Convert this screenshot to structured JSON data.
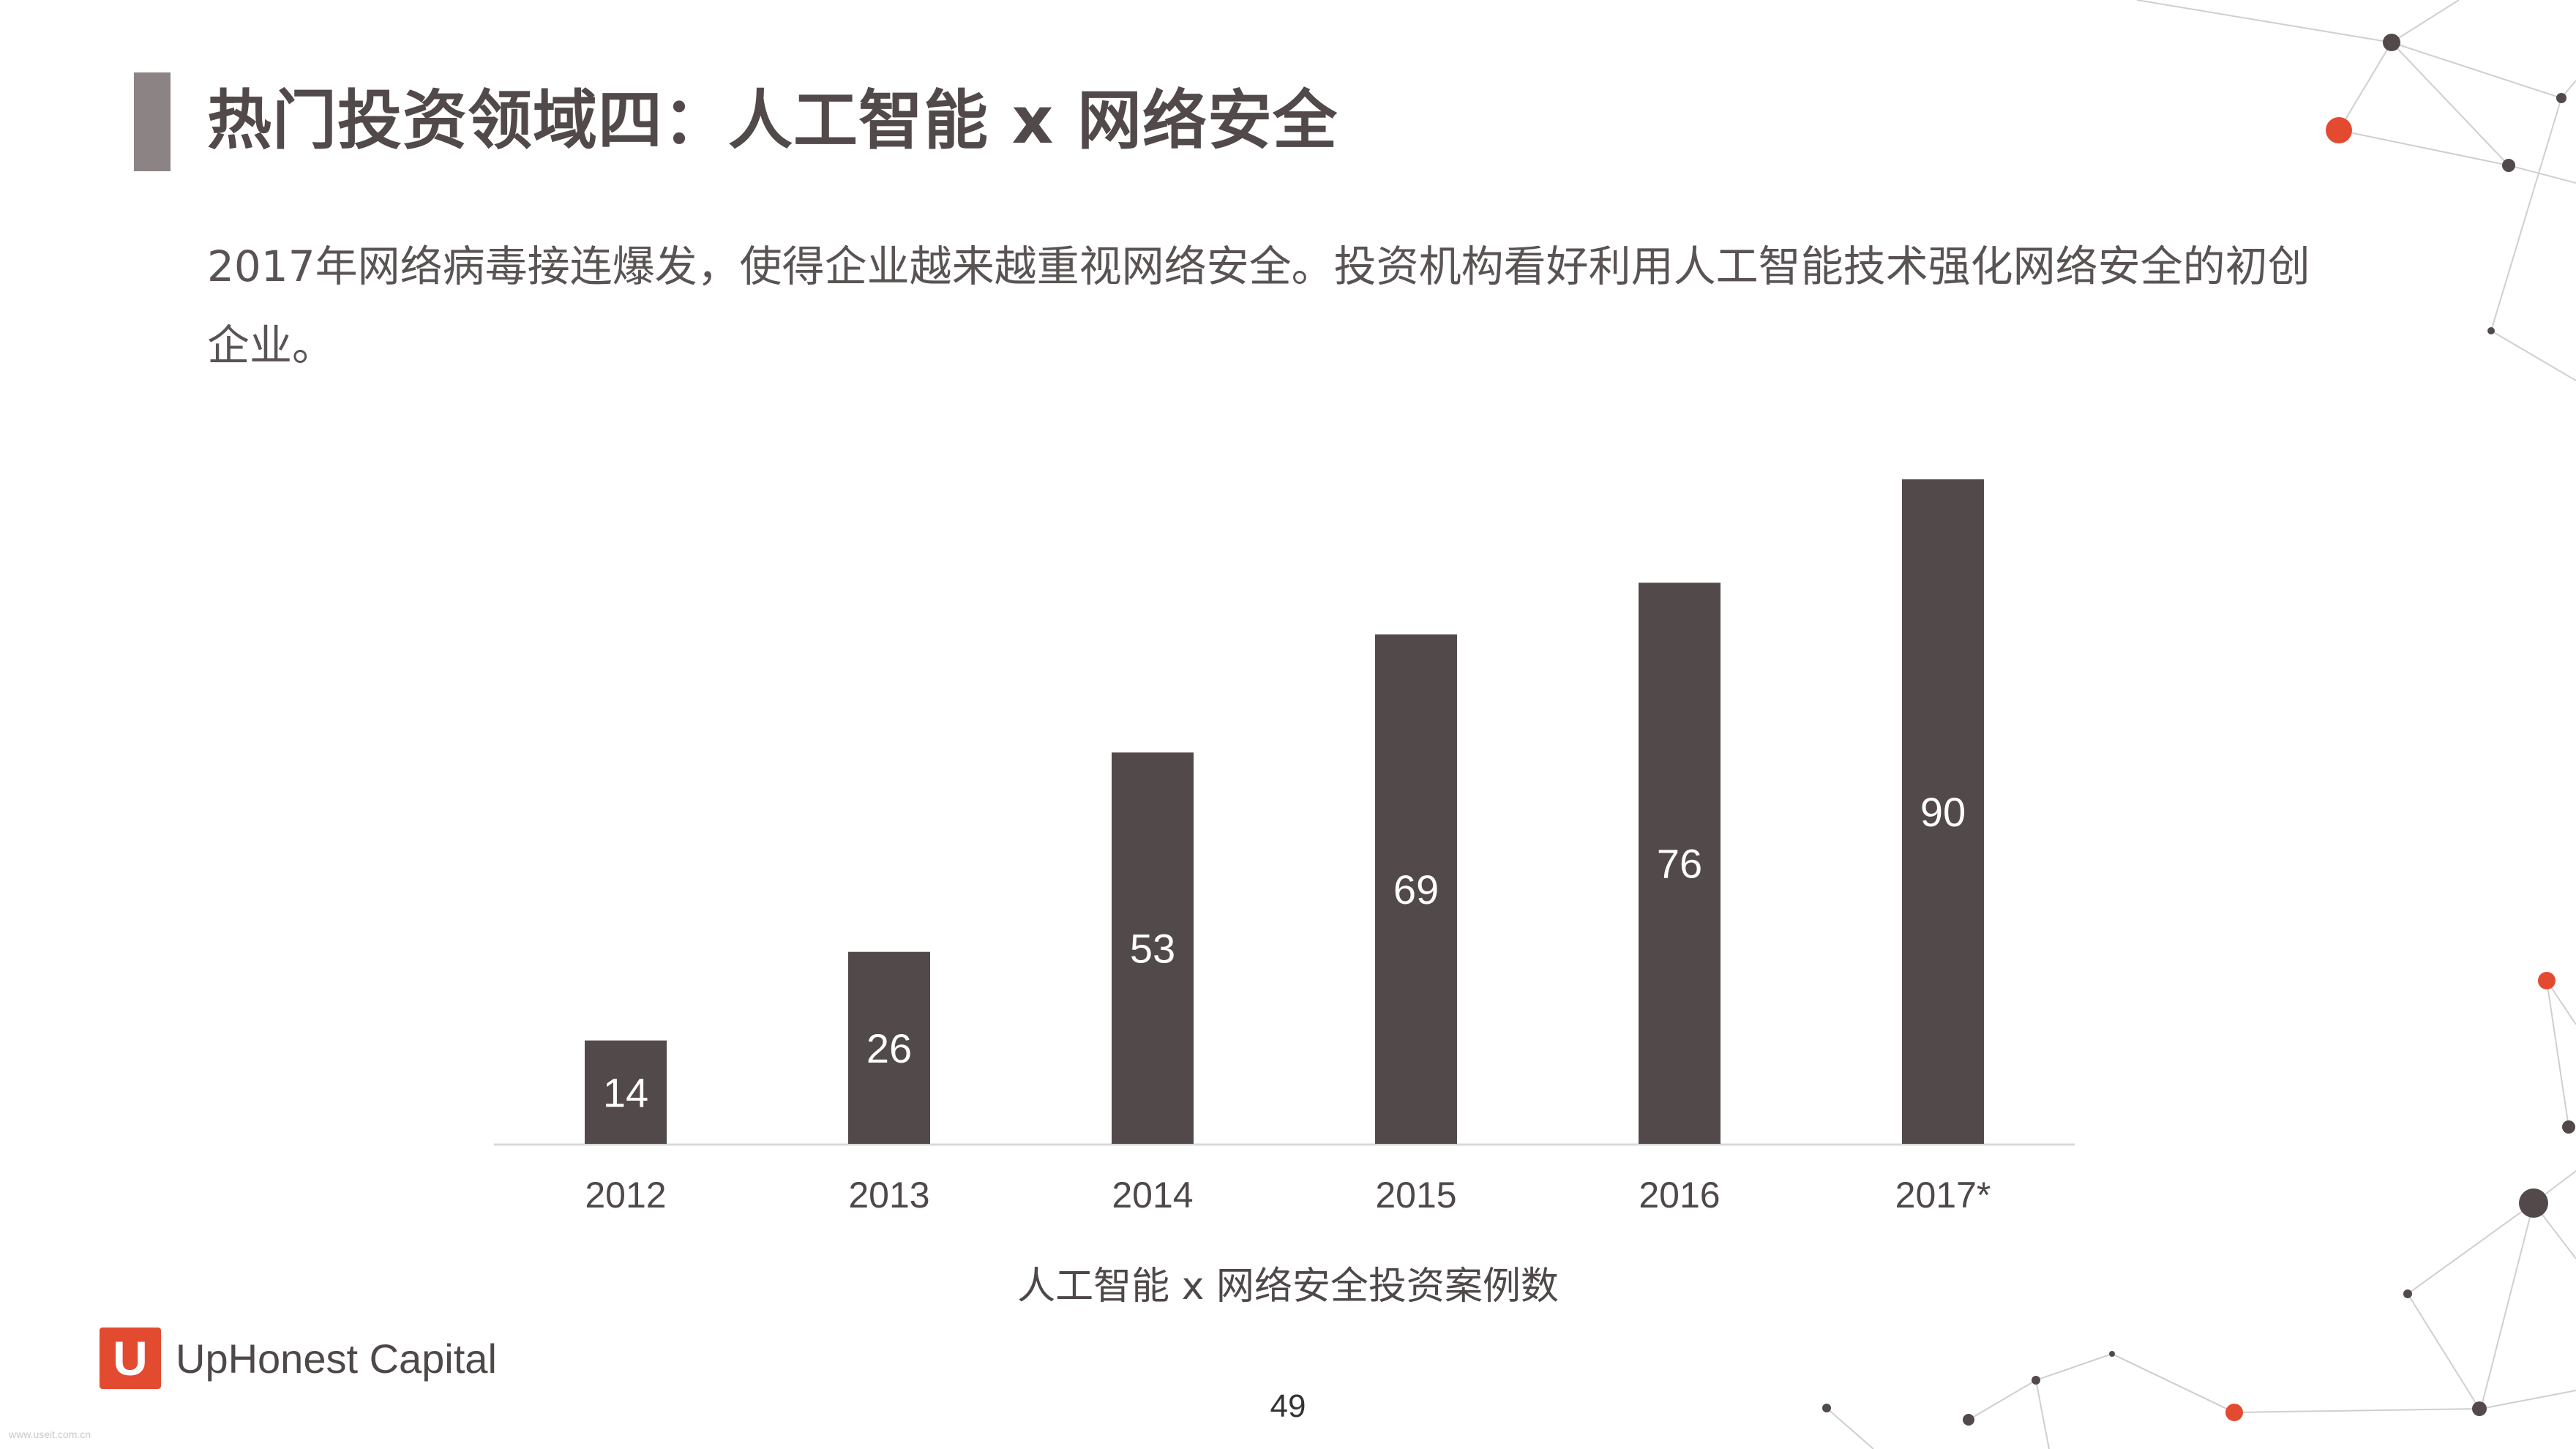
{
  "header": {
    "title": "热门投资领域四：人工智能 x 网络安全",
    "subtitle": "2017年网络病毒接连爆发，使得企业越来越重视网络安全。投资机构看好利用人工智能技术强化网络安全的初创企业。"
  },
  "chart_data": {
    "type": "bar",
    "categories": [
      "2012",
      "2013",
      "2014",
      "2015",
      "2016",
      "2017*"
    ],
    "values": [
      14,
      26,
      53,
      69,
      76,
      90
    ],
    "xlabel": "人工智能 x 网络安全投资案例数",
    "ylabel": "",
    "ylim": [
      0,
      90
    ],
    "grid": false,
    "bar_color": "#524a4a",
    "label_color": "#ffffff"
  },
  "footer": {
    "logo_mark": "U",
    "logo_text": "UpHonest Capital",
    "page_number": "49",
    "watermark": "www.useit.com.cn"
  },
  "colors": {
    "accent": "#e34b31",
    "dark": "#524a4a",
    "title_bar": "#8c8384"
  }
}
